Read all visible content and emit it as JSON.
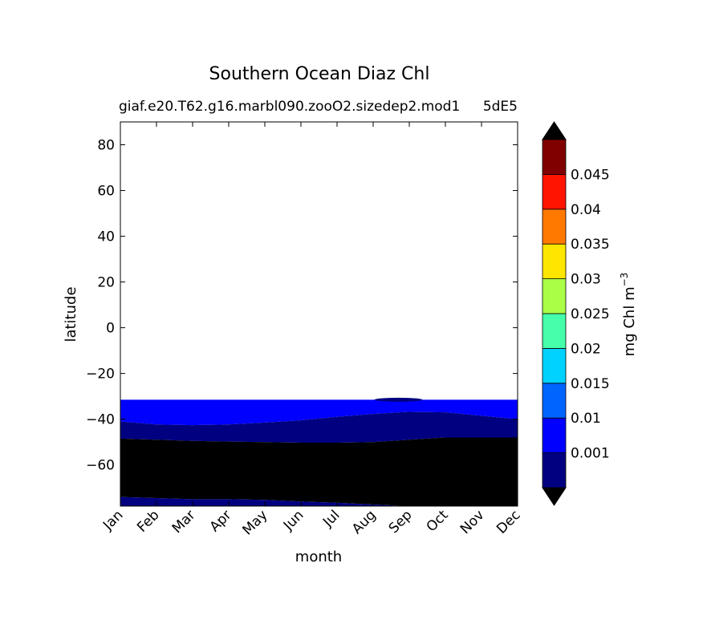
{
  "chart_data": {
    "type": "contour",
    "title": "Southern Ocean Diaz Chl",
    "subtitle_left": "giaf.e20.T62.g16.marbl090.zooO2.sizedep2.mod1",
    "subtitle_right": "5dE5",
    "xlabel": "month",
    "ylabel": "latitude",
    "ylim": [
      -78,
      90
    ],
    "x_categories": [
      "Jan",
      "Feb",
      "Mar",
      "Apr",
      "May",
      "Jun",
      "Jul",
      "Aug",
      "Sep",
      "Oct",
      "Nov",
      "Dec"
    ],
    "y_ticks": [
      80,
      60,
      40,
      20,
      0,
      -20,
      -40,
      -60
    ],
    "y_tick_labels": [
      "80",
      "60",
      "40",
      "20",
      "0",
      "−20",
      "−40",
      "−60"
    ],
    "data_north_boundary_lat": -31.5,
    "contour_boundaries": [
      {
        "name": "0.001-contour",
        "level": 0.001,
        "lat": [
          -41,
          -42.3,
          -42.6,
          -42.3,
          -41.5,
          -40.5,
          -39,
          -37.7,
          -36.8,
          -37,
          -38.5,
          -40
        ]
      },
      {
        "name": "lower-contour",
        "level": 0.0005,
        "lat": [
          -48.5,
          -49,
          -49.5,
          -49.8,
          -50,
          -50.3,
          -50.3,
          -50,
          -49,
          -48,
          -48,
          -48
        ]
      },
      {
        "name": "coastal-contour",
        "level": 0.0005,
        "lat": [
          -74,
          -74.5,
          -75,
          -75,
          -75.3,
          -76,
          -76.5,
          -77.3,
          -78,
          -78,
          -78,
          -78
        ]
      }
    ],
    "colorbar": {
      "label": "mg Chl m",
      "label_exponent": "−3",
      "tick_labels": [
        "0.001",
        "0.01",
        "0.015",
        "0.02",
        "0.025",
        "0.03",
        "0.035",
        "0.04",
        "0.045"
      ],
      "band_colors": [
        "#000080",
        "#0000ff",
        "#0064ff",
        "#00d2ff",
        "#46ffaa",
        "#aaff46",
        "#ffe600",
        "#ff7800",
        "#ff1400",
        "#800000"
      ],
      "under_color": "#000000",
      "over_color": "#000000"
    }
  }
}
